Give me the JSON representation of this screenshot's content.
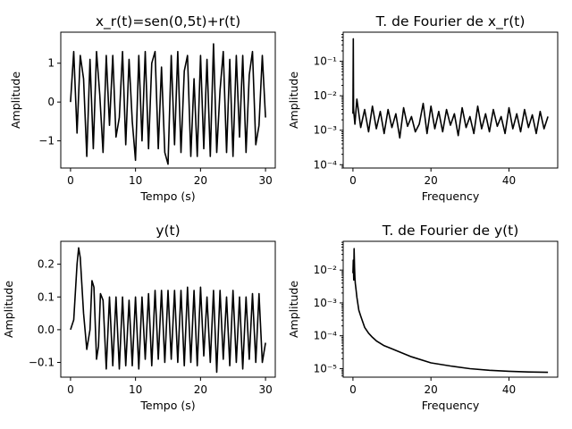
{
  "chart_data": [
    {
      "type": "line",
      "title": "x_r(t)=sen(0,5t)+r(t)",
      "xlabel": "Tempo (s)",
      "ylabel": "Amplitude",
      "xlim": [
        -1.5,
        31.5
      ],
      "ylim": [
        -1.7,
        1.8
      ],
      "xticks": [
        0,
        10,
        20,
        30
      ],
      "xticklabels": [
        "0",
        "10",
        "20",
        "30"
      ],
      "yticks": [
        -1,
        0,
        1
      ],
      "yticklabels": [
        "−1",
        "0",
        "1"
      ],
      "yscale": "linear",
      "color": "#000000",
      "series": [
        {
          "x": [
            0,
            0.5,
            1,
            1.5,
            2,
            2.5,
            3,
            3.5,
            4,
            4.5,
            5,
            5.5,
            6,
            6.5,
            7,
            7.5,
            8,
            8.5,
            9,
            9.5,
            10,
            10.5,
            11,
            11.5,
            12,
            12.5,
            13,
            13.5,
            14,
            14.5,
            15,
            15.5,
            16,
            16.5,
            17,
            17.5,
            18,
            18.5,
            19,
            19.5,
            20,
            20.5,
            21,
            21.5,
            22,
            22.5,
            23,
            23.5,
            24,
            24.5,
            25,
            25.5,
            26,
            26.5,
            27,
            27.5,
            28,
            28.5,
            29,
            29.5,
            30
          ],
          "values": [
            0.0,
            1.3,
            -0.8,
            1.2,
            0.6,
            -1.4,
            1.1,
            -1.2,
            1.3,
            0.2,
            -1.3,
            1.2,
            -0.6,
            1.2,
            -0.9,
            -0.4,
            1.3,
            -1.1,
            1.1,
            -0.5,
            -1.5,
            1.2,
            -1.0,
            1.3,
            -1.2,
            1.0,
            1.3,
            -1.2,
            0.9,
            -1.3,
            -1.6,
            1.2,
            -1.1,
            1.3,
            -1.3,
            0.8,
            1.2,
            -1.4,
            0.6,
            -1.4,
            1.2,
            -1.2,
            1.1,
            -1.4,
            1.5,
            -1.3,
            0.3,
            1.3,
            -1.3,
            1.1,
            -1.4,
            1.2,
            -0.9,
            1.2,
            -1.3,
            0.7,
            1.3,
            -1.1,
            -0.6,
            1.2,
            -0.4
          ]
        }
      ]
    },
    {
      "type": "line",
      "title": "T. de Fourier de x_r(t)",
      "xlabel": "Frequency",
      "ylabel": "Amplitude",
      "xlim": [
        -2.5,
        52.5
      ],
      "ylim": [
        8e-05,
        0.7
      ],
      "xticks": [
        0,
        20,
        40
      ],
      "xticklabels": [
        "0",
        "20",
        "40"
      ],
      "yticks": [
        0.0001,
        0.001,
        0.01,
        0.1
      ],
      "yticklabels": [
        "10⁻⁴",
        "10⁻³",
        "10⁻²",
        "10⁻¹"
      ],
      "yscale": "log",
      "color": "#000000",
      "series": [
        {
          "x": [
            0,
            0.08,
            0.16,
            0.5,
            1,
            2,
            3,
            4,
            5,
            6,
            7,
            8,
            9,
            10,
            11,
            12,
            13,
            14,
            15,
            16,
            17,
            18,
            19,
            20,
            21,
            22,
            23,
            24,
            25,
            26,
            27,
            28,
            29,
            30,
            31,
            32,
            33,
            34,
            35,
            36,
            37,
            38,
            39,
            40,
            41,
            42,
            43,
            44,
            45,
            46,
            47,
            48,
            49,
            50
          ],
          "values": [
            0.003,
            0.45,
            0.004,
            0.0015,
            0.008,
            0.0012,
            0.004,
            0.0009,
            0.005,
            0.0011,
            0.0035,
            0.0008,
            0.004,
            0.0012,
            0.003,
            0.0006,
            0.0045,
            0.0013,
            0.0025,
            0.0009,
            0.0015,
            0.006,
            0.0008,
            0.005,
            0.0011,
            0.0035,
            0.0009,
            0.004,
            0.0014,
            0.003,
            0.0007,
            0.0045,
            0.0012,
            0.0025,
            0.0008,
            0.005,
            0.0011,
            0.003,
            0.0009,
            0.004,
            0.0013,
            0.0025,
            0.0008,
            0.0045,
            0.0011,
            0.003,
            0.0009,
            0.004,
            0.0012,
            0.0028,
            0.0008,
            0.0035,
            0.0011,
            0.0025
          ]
        }
      ]
    },
    {
      "type": "line",
      "title": "y(t)",
      "xlabel": "Tempo (s)",
      "ylabel": "Amplitude",
      "xlim": [
        -1.5,
        31.5
      ],
      "ylim": [
        -0.145,
        0.27
      ],
      "xticks": [
        0,
        10,
        20,
        30
      ],
      "xticklabels": [
        "0",
        "10",
        "20",
        "30"
      ],
      "yticks": [
        -0.1,
        0.0,
        0.1,
        0.2
      ],
      "yticklabels": [
        "−0.1",
        "0.0",
        "0.1",
        "0.2"
      ],
      "yscale": "linear",
      "color": "#000000",
      "series": [
        {
          "x": [
            0,
            0.5,
            1.0,
            1.25,
            1.5,
            2.0,
            2.5,
            3.0,
            3.3,
            3.6,
            4.0,
            4.3,
            4.6,
            5.0,
            5.5,
            6.0,
            6.5,
            7.0,
            7.5,
            8.0,
            8.5,
            9.0,
            9.5,
            10.0,
            10.5,
            11.0,
            11.5,
            12.0,
            12.5,
            13.0,
            13.5,
            14.0,
            14.5,
            15.0,
            15.5,
            16.0,
            16.5,
            17.0,
            17.5,
            18.0,
            18.5,
            19.0,
            19.5,
            20.0,
            20.5,
            21.0,
            21.5,
            22.0,
            22.5,
            23.0,
            23.5,
            24.0,
            24.5,
            25.0,
            25.5,
            26.0,
            26.5,
            27.0,
            27.5,
            28.0,
            28.5,
            29.0,
            29.5,
            30.0
          ],
          "values": [
            0.0,
            0.03,
            0.2,
            0.25,
            0.22,
            0.05,
            -0.06,
            0.0,
            0.15,
            0.13,
            -0.09,
            -0.05,
            0.11,
            0.09,
            -0.12,
            0.1,
            -0.11,
            0.1,
            -0.12,
            0.1,
            -0.11,
            0.09,
            -0.11,
            0.1,
            -0.12,
            0.1,
            -0.09,
            0.11,
            -0.11,
            0.12,
            -0.09,
            0.12,
            -0.1,
            0.12,
            -0.09,
            0.12,
            -0.1,
            0.12,
            -0.11,
            0.13,
            -0.1,
            0.12,
            -0.11,
            0.13,
            -0.08,
            0.1,
            -0.1,
            0.12,
            -0.13,
            0.12,
            -0.09,
            0.1,
            -0.11,
            0.12,
            -0.1,
            0.1,
            -0.12,
            0.1,
            -0.09,
            0.11,
            -0.1,
            0.11,
            -0.1,
            -0.04
          ]
        }
      ]
    },
    {
      "type": "line",
      "title": "T. de Fourier de y(t)",
      "xlabel": "Frequency",
      "ylabel": "Amplitude",
      "xlim": [
        -2.5,
        52.5
      ],
      "ylim": [
        5.5e-06,
        0.075
      ],
      "xticks": [
        0,
        20,
        40
      ],
      "xticklabels": [
        "0",
        "20",
        "40"
      ],
      "yticks": [
        1e-05,
        0.0001,
        0.001,
        0.01
      ],
      "yticklabels": [
        "10⁻⁵",
        "10⁻⁴",
        "10⁻³",
        "10⁻²"
      ],
      "yscale": "log",
      "color": "#000000",
      "series": [
        {
          "x": [
            0,
            0.1,
            0.2,
            0.3,
            0.4,
            0.5,
            0.6,
            0.8,
            1.0,
            1.5,
            2,
            3,
            4,
            5,
            6,
            8,
            10,
            12,
            15,
            20,
            25,
            30,
            35,
            40,
            45,
            50
          ],
          "values": [
            0.008,
            0.02,
            0.005,
            0.045,
            0.012,
            0.006,
            0.004,
            0.0025,
            0.0015,
            0.0006,
            0.0004,
            0.00018,
            0.00012,
            9e-05,
            7e-05,
            5e-05,
            4e-05,
            3.2e-05,
            2.3e-05,
            1.5e-05,
            1.2e-05,
            1e-05,
            8.9e-06,
            8.3e-06,
            7.9e-06,
            7.7e-06
          ]
        }
      ]
    }
  ]
}
